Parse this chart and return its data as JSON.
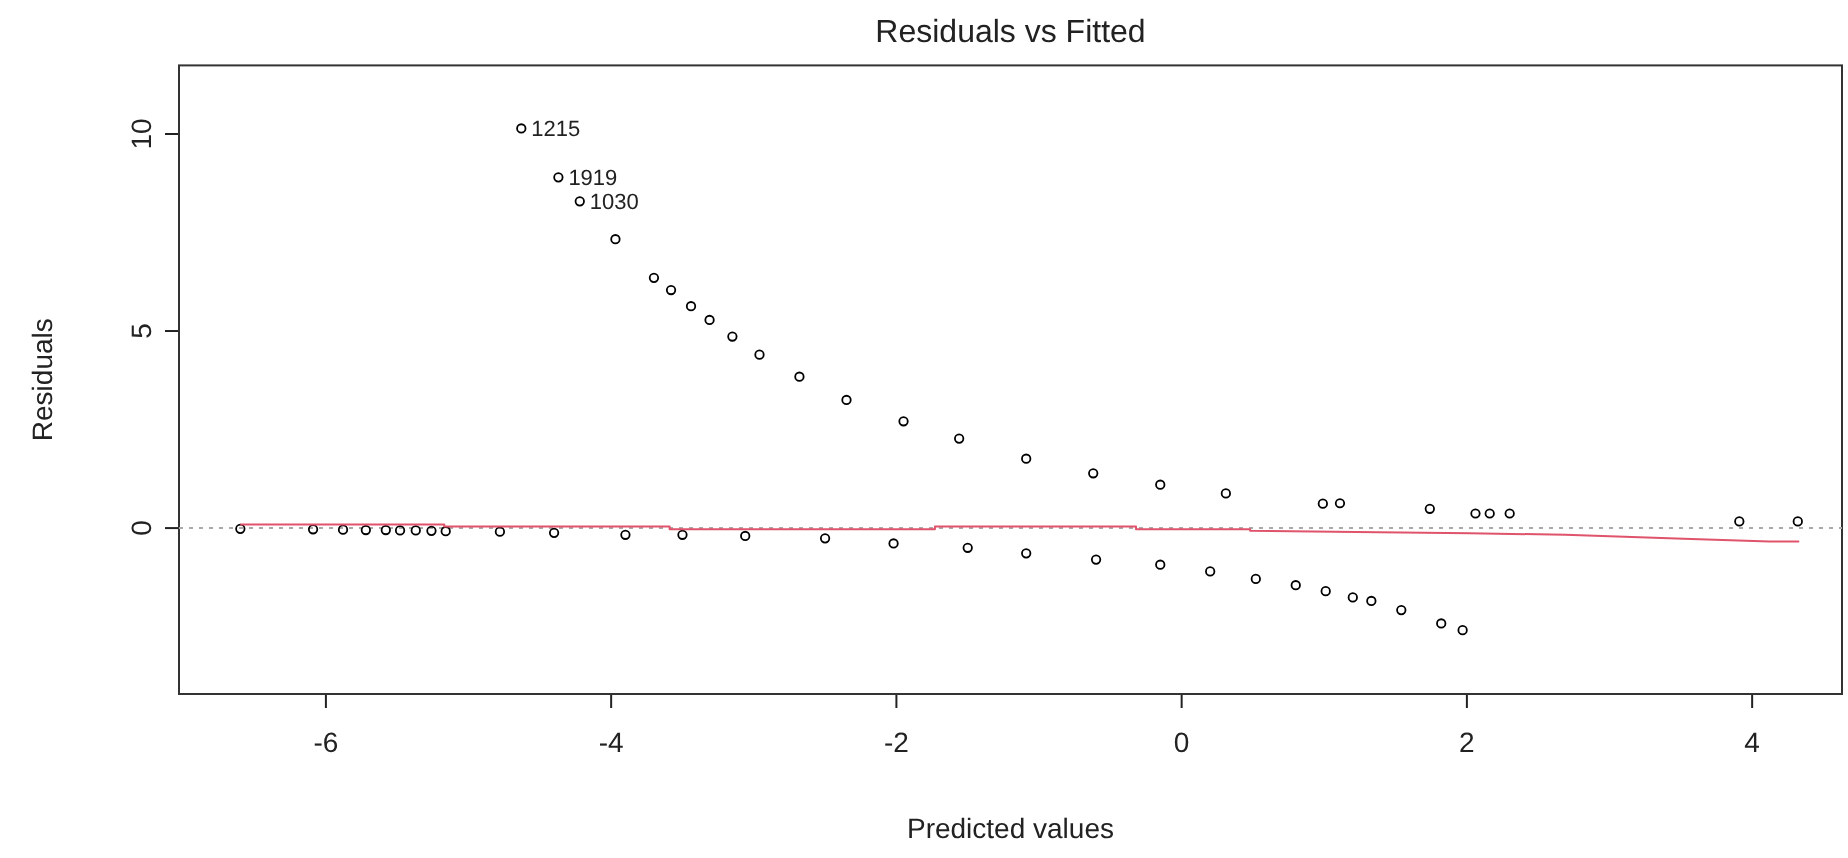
{
  "chart_data": {
    "type": "scatter",
    "title": "Residuals vs Fitted",
    "xlabel": "Predicted values",
    "ylabel": "Residuals",
    "xlim": [
      -7.03,
      4.63
    ],
    "xticks": [
      -6,
      -4,
      -2,
      0,
      2,
      4
    ],
    "ylim": [
      -4.21,
      11.74
    ],
    "yticks": [
      0,
      5,
      10
    ],
    "grid": false,
    "marker": "circle",
    "series": [
      {
        "color": "#000000",
        "x": [
          -4.63,
          -4.37,
          -4.22,
          -3.97,
          -3.7,
          -3.58,
          -3.44,
          -3.31,
          -3.15,
          -2.96,
          -2.68,
          -2.35,
          -1.95,
          -1.56,
          -1.09,
          -0.62,
          -0.15,
          0.31,
          0.99,
          1.11,
          1.74,
          2.06,
          2.16,
          2.3,
          3.91,
          4.32
        ],
        "values": [
          10.14,
          8.9,
          8.29,
          7.33,
          6.35,
          6.04,
          5.63,
          5.28,
          4.86,
          4.4,
          3.84,
          3.25,
          2.71,
          2.27,
          1.76,
          1.39,
          1.1,
          0.88,
          0.62,
          0.63,
          0.49,
          0.37,
          0.37,
          0.37,
          0.17,
          0.17
        ]
      },
      {
        "color": "#000000",
        "x": [
          -6.6,
          -6.09,
          -5.88,
          -5.72,
          -5.58,
          -5.48,
          -5.37,
          -5.26,
          -5.16,
          -4.78,
          -4.4,
          -3.9,
          -3.5,
          -3.06,
          -2.5,
          -2.02,
          -1.5,
          -1.09,
          -0.6,
          -0.15,
          0.2,
          0.52,
          0.8,
          1.01,
          1.2,
          1.33,
          1.54,
          1.82,
          1.97
        ],
        "values": [
          -0.02,
          -0.03,
          -0.04,
          -0.05,
          -0.05,
          -0.06,
          -0.06,
          -0.07,
          -0.08,
          -0.09,
          -0.12,
          -0.17,
          -0.17,
          -0.2,
          -0.26,
          -0.39,
          -0.5,
          -0.64,
          -0.8,
          -0.93,
          -1.1,
          -1.29,
          -1.45,
          -1.6,
          -1.76,
          -1.85,
          -2.08,
          -2.42,
          -2.59
        ]
      },
      {
        "type": "line",
        "color": "#df536b",
        "marker": "none",
        "x": [
          -6.6,
          -5.17,
          -5.17,
          -3.59,
          -3.59,
          -1.73,
          -1.73,
          -0.32,
          -0.32,
          0.48,
          0.48,
          1.22,
          2.02,
          2.69,
          3.52,
          4.12,
          4.33
        ],
        "values": [
          0.09,
          0.09,
          0.04,
          0.04,
          -0.03,
          -0.03,
          0.04,
          0.04,
          -0.03,
          -0.03,
          -0.07,
          -0.1,
          -0.13,
          -0.17,
          -0.27,
          -0.34,
          -0.34
        ]
      }
    ],
    "ref_lines": [
      {
        "axis": "y",
        "value": 0,
        "color": "#aaaaaa",
        "line_style": "dotted"
      }
    ],
    "annotations": [
      {
        "text": "1215",
        "x": -4.63,
        "y": 10.14
      },
      {
        "text": "1919",
        "x": -4.37,
        "y": 8.9
      },
      {
        "text": "1030",
        "x": -4.22,
        "y": 8.29
      }
    ]
  }
}
